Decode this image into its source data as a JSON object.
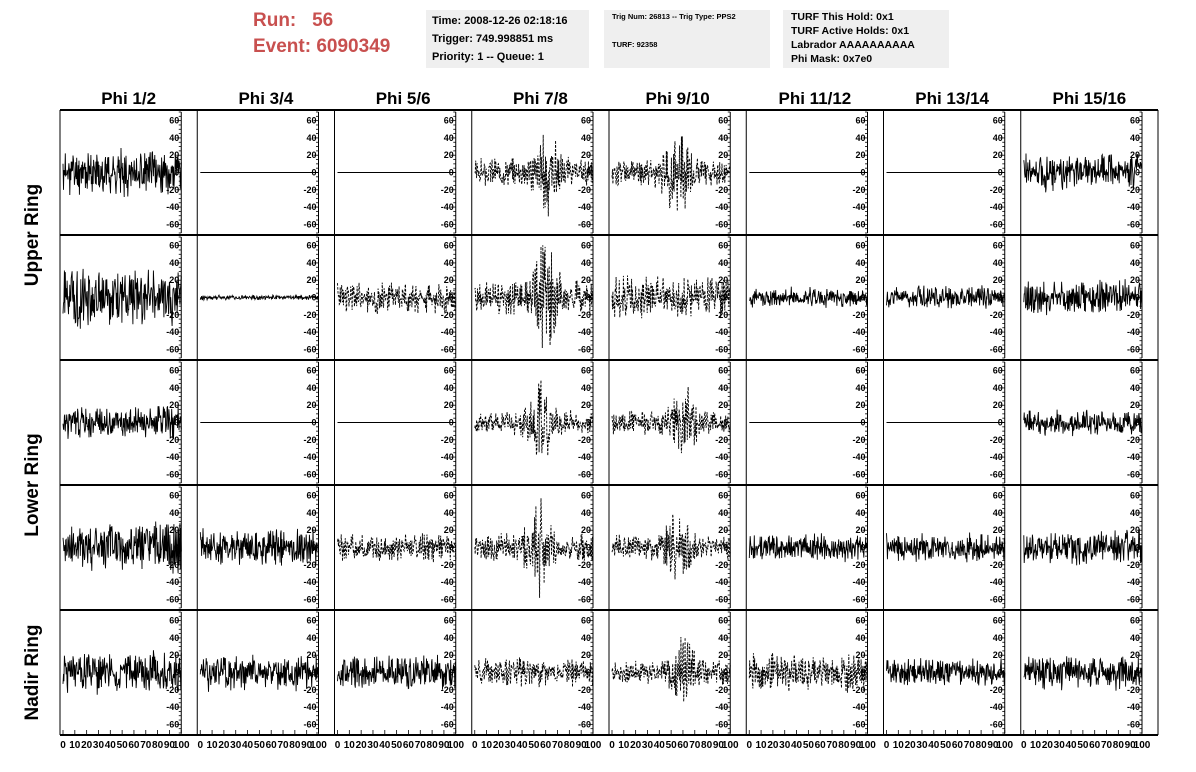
{
  "header": {
    "run_label": "Run:",
    "run_value": "56",
    "event_label": "Event:",
    "event_value": "6090349",
    "box1": {
      "time": "Time: 2008-12-26 02:18:16",
      "trigger": "Trigger: 749.998851 ms",
      "priority": "Priority: 1 -- Queue: 1"
    },
    "box2": {
      "trig": "Trig Num: 26813 -- Trig Type: PPS2",
      "turf": "TURF: 92358"
    },
    "box3": {
      "this_hold": "TURF This Hold: 0x1",
      "active_holds": "TURF Active Holds: 0x1",
      "labrador": "Labrador AAAAAAAAAA",
      "phi_mask": "Phi Mask: 0x7e0"
    }
  },
  "chart_data": {
    "type": "line",
    "columns": [
      "Phi 1/2",
      "Phi 3/4",
      "Phi 5/6",
      "Phi 7/8",
      "Phi 9/10",
      "Phi 11/12",
      "Phi 13/14",
      "Phi 15/16"
    ],
    "ring_labels": [
      {
        "label": "Upper Ring",
        "rows": [
          0,
          1
        ]
      },
      {
        "label": "Lower Ring",
        "rows": [
          2,
          3
        ]
      },
      {
        "label": "Nadir Ring",
        "rows": [
          4
        ]
      }
    ],
    "ylim": [
      -70,
      70
    ],
    "yticks": [
      -60,
      -40,
      -20,
      0,
      20,
      40,
      60
    ],
    "xlim": [
      0,
      100
    ],
    "xticks": [
      0,
      10,
      20,
      30,
      40,
      50,
      60,
      70,
      80,
      90,
      100
    ],
    "xtick_labels": [
      "0",
      "10",
      "20",
      "30",
      "40",
      "50",
      "60",
      "70",
      "80",
      "90",
      "100"
    ],
    "n_samples": 260,
    "panels": [
      [
        {
          "style": "solid",
          "amp": 18,
          "seed": 11
        },
        {
          "style": "flat",
          "amp": 0,
          "seed": 12
        },
        {
          "style": "flat",
          "amp": 0,
          "seed": 13
        },
        {
          "style": "dashed",
          "amp": 20,
          "seed": 14,
          "burst": 0.6
        },
        {
          "style": "dashed",
          "amp": 20,
          "seed": 15,
          "burst": 0.55
        },
        {
          "style": "flat",
          "amp": 0,
          "seed": 16
        },
        {
          "style": "flat",
          "amp": 0,
          "seed": 17
        },
        {
          "style": "solid",
          "amp": 15,
          "seed": 18
        }
      ],
      [
        {
          "style": "solid",
          "amp": 24,
          "seed": 21
        },
        {
          "style": "solid",
          "amp": 2,
          "seed": 22
        },
        {
          "style": "dashed",
          "amp": 13,
          "seed": 23
        },
        {
          "style": "dashed",
          "amp": 24,
          "seed": 24,
          "burst": 0.6
        },
        {
          "style": "dashed",
          "amp": 17,
          "seed": 25
        },
        {
          "style": "solid",
          "amp": 8,
          "seed": 26
        },
        {
          "style": "solid",
          "amp": 9,
          "seed": 27
        },
        {
          "style": "solid",
          "amp": 14,
          "seed": 28
        }
      ],
      [
        {
          "style": "solid",
          "amp": 13,
          "seed": 31
        },
        {
          "style": "flat",
          "amp": 0,
          "seed": 32
        },
        {
          "style": "flat",
          "amp": 0,
          "seed": 33
        },
        {
          "style": "dashed",
          "amp": 18,
          "seed": 34,
          "burst": 0.55
        },
        {
          "style": "dashed",
          "amp": 17,
          "seed": 35,
          "burst": 0.6
        },
        {
          "style": "flat",
          "amp": 0,
          "seed": 36
        },
        {
          "style": "flat",
          "amp": 0,
          "seed": 37
        },
        {
          "style": "solid",
          "amp": 10,
          "seed": 38
        }
      ],
      [
        {
          "style": "solid",
          "amp": 20,
          "seed": 41
        },
        {
          "style": "solid",
          "amp": 15,
          "seed": 42
        },
        {
          "style": "dashed",
          "amp": 11,
          "seed": 43
        },
        {
          "style": "dashed",
          "amp": 21,
          "seed": 44,
          "burst": 0.55
        },
        {
          "style": "dashed",
          "amp": 18,
          "seed": 45,
          "burst": 0.55
        },
        {
          "style": "solid",
          "amp": 11,
          "seed": 46
        },
        {
          "style": "solid",
          "amp": 11,
          "seed": 47
        },
        {
          "style": "solid",
          "amp": 15,
          "seed": 48
        }
      ],
      [
        {
          "style": "solid",
          "amp": 17,
          "seed": 51
        },
        {
          "style": "solid",
          "amp": 15,
          "seed": 52
        },
        {
          "style": "solid",
          "amp": 14,
          "seed": 53
        },
        {
          "style": "dashed",
          "amp": 12,
          "seed": 54
        },
        {
          "style": "dashed",
          "amp": 17,
          "seed": 55,
          "burst": 0.6
        },
        {
          "style": "dashed",
          "amp": 15,
          "seed": 56
        },
        {
          "style": "solid",
          "amp": 11,
          "seed": 57
        },
        {
          "style": "solid",
          "amp": 14,
          "seed": 58
        }
      ]
    ]
  }
}
